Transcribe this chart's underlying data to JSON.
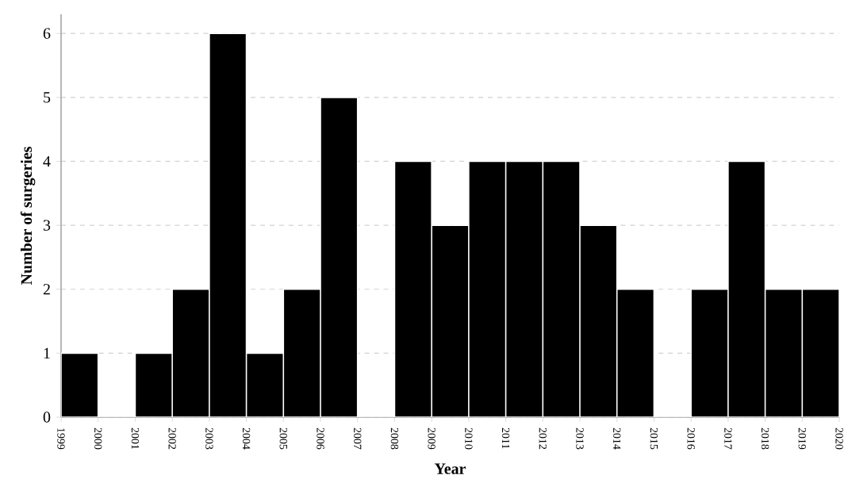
{
  "chart_data": {
    "type": "histogram",
    "xlabel": "Year",
    "ylabel": "Number of surgeries",
    "bins": [
      1999,
      2000,
      2001,
      2002,
      2003,
      2004,
      2005,
      2006,
      2007,
      2008,
      2009,
      2010,
      2011,
      2012,
      2013,
      2014,
      2015,
      2016,
      2017,
      2018,
      2019,
      2020
    ],
    "values": [
      1,
      0,
      1,
      2,
      6,
      1,
      2,
      5,
      0,
      4,
      3,
      4,
      4,
      4,
      3,
      2,
      0,
      2,
      4,
      2,
      2
    ],
    "color": "#000000",
    "xlim": [
      1999,
      2020
    ],
    "ylim": [
      0,
      6.3
    ],
    "xticks": [
      1999,
      2000,
      2001,
      2002,
      2003,
      2004,
      2005,
      2006,
      2007,
      2008,
      2009,
      2010,
      2011,
      2012,
      2013,
      2014,
      2015,
      2016,
      2017,
      2018,
      2019,
      2020
    ],
    "yticks": [
      0,
      1,
      2,
      3,
      4,
      5,
      6
    ],
    "grid": "y"
  }
}
